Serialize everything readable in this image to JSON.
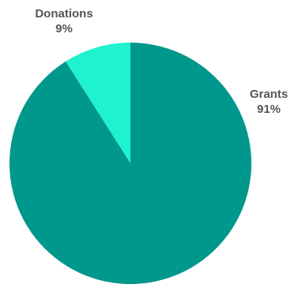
{
  "chart_data": {
    "type": "pie",
    "title": "",
    "start_angle_deg": 0,
    "direction": "counterclockwise",
    "slices": [
      {
        "name": "Donations",
        "value": 9,
        "label": "9%",
        "color": "#1ef2cf"
      },
      {
        "name": "Grants",
        "value": 91,
        "label": "91%",
        "color": "#00978c"
      }
    ]
  }
}
